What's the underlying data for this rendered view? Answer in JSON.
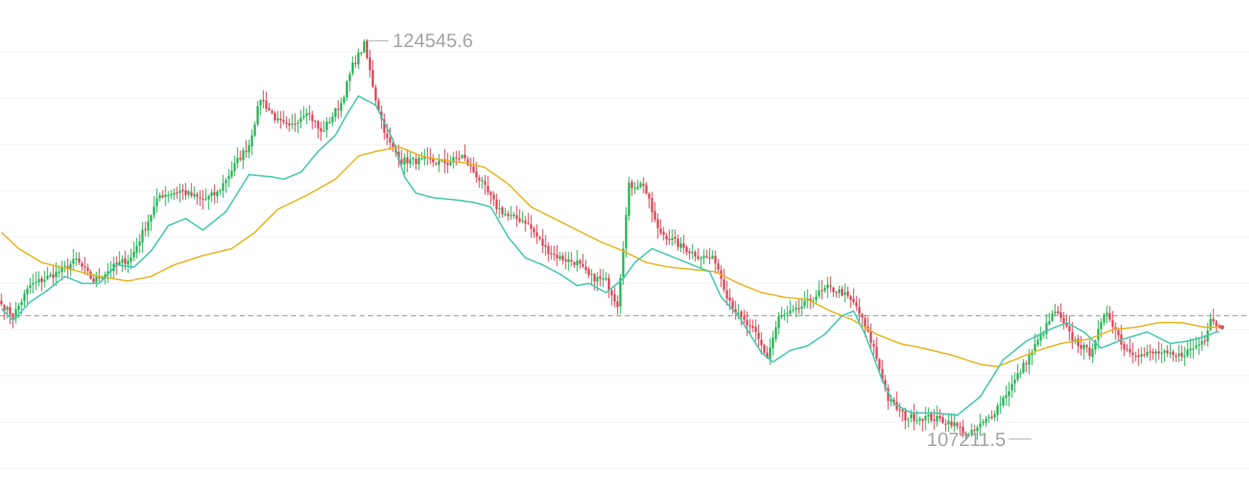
{
  "chart_data": {
    "type": "candlestick",
    "ylim": [
      105400,
      126000
    ],
    "grid": true,
    "colors": {
      "up": "#2eb85c",
      "down": "#dd4d5d",
      "ma_fast": "#3ec9ad",
      "ma_slow": "#e8b41c",
      "grid": "#eeeeee",
      "reference": "#9a9a9a",
      "label": "#a3a3a3"
    },
    "reference_price": 112600,
    "high_label": "124545.6",
    "low_label": "107211.5",
    "high_value": 124545.6,
    "low_value": 107211.5,
    "series": [
      {
        "name": "close",
        "anchors": [
          [
            0,
            113100
          ],
          [
            4,
            112600
          ],
          [
            10,
            113900
          ],
          [
            20,
            114500
          ],
          [
            26,
            115000
          ],
          [
            32,
            114100
          ],
          [
            40,
            114800
          ],
          [
            45,
            115100
          ],
          [
            55,
            117800
          ],
          [
            62,
            118000
          ],
          [
            70,
            117600
          ],
          [
            75,
            117900
          ],
          [
            82,
            119300
          ],
          [
            86,
            120000
          ],
          [
            90,
            122000
          ],
          [
            96,
            121000
          ],
          [
            100,
            120700
          ],
          [
            106,
            121500
          ],
          [
            111,
            120500
          ],
          [
            118,
            121800
          ],
          [
            122,
            123400
          ],
          [
            126,
            124300
          ],
          [
            130,
            122000
          ],
          [
            134,
            120200
          ],
          [
            139,
            119300
          ],
          [
            146,
            119300
          ],
          [
            155,
            119200
          ],
          [
            160,
            119500
          ],
          [
            166,
            118500
          ],
          [
            172,
            117300
          ],
          [
            176,
            116900
          ],
          [
            182,
            116700
          ],
          [
            189,
            115500
          ],
          [
            194,
            115100
          ],
          [
            200,
            114900
          ],
          [
            204,
            114300
          ],
          [
            210,
            114100
          ],
          [
            214,
            113100
          ],
          [
            218,
            118200
          ],
          [
            223,
            118300
          ],
          [
            228,
            116300
          ],
          [
            236,
            115600
          ],
          [
            242,
            115200
          ],
          [
            248,
            115000
          ],
          [
            252,
            113500
          ],
          [
            256,
            112600
          ],
          [
            262,
            111800
          ],
          [
            266,
            110800
          ],
          [
            270,
            112500
          ],
          [
            276,
            112800
          ],
          [
            282,
            113400
          ],
          [
            287,
            113800
          ],
          [
            292,
            113600
          ],
          [
            297,
            113000
          ],
          [
            303,
            111200
          ],
          [
            308,
            109000
          ],
          [
            314,
            108200
          ],
          [
            322,
            108200
          ],
          [
            330,
            108000
          ],
          [
            336,
            107400
          ],
          [
            344,
            108300
          ],
          [
            352,
            109800
          ],
          [
            360,
            111500
          ],
          [
            366,
            112800
          ],
          [
            372,
            111600
          ],
          [
            378,
            111000
          ],
          [
            384,
            112800
          ],
          [
            390,
            111200
          ],
          [
            396,
            110900
          ],
          [
            402,
            111000
          ],
          [
            408,
            110800
          ],
          [
            414,
            111200
          ],
          [
            418,
            111600
          ],
          [
            420,
            112600
          ],
          [
            422,
            112200
          ]
        ]
      },
      {
        "name": "ma_fast",
        "anchors": [
          [
            0,
            112900
          ],
          [
            4,
            112400
          ],
          [
            10,
            113200
          ],
          [
            16,
            113700
          ],
          [
            22,
            114300
          ],
          [
            28,
            114000
          ],
          [
            34,
            114000
          ],
          [
            40,
            114800
          ],
          [
            46,
            114700
          ],
          [
            52,
            115400
          ],
          [
            58,
            116500
          ],
          [
            64,
            116800
          ],
          [
            70,
            116300
          ],
          [
            78,
            117100
          ],
          [
            86,
            118700
          ],
          [
            94,
            118600
          ],
          [
            98,
            118500
          ],
          [
            104,
            118800
          ],
          [
            110,
            119700
          ],
          [
            116,
            120400
          ],
          [
            120,
            121300
          ],
          [
            124,
            122100
          ],
          [
            130,
            121700
          ],
          [
            136,
            120200
          ],
          [
            140,
            118600
          ],
          [
            144,
            117900
          ],
          [
            150,
            117700
          ],
          [
            158,
            117600
          ],
          [
            164,
            117500
          ],
          [
            170,
            117300
          ],
          [
            176,
            116000
          ],
          [
            182,
            115100
          ],
          [
            188,
            114800
          ],
          [
            194,
            114400
          ],
          [
            200,
            113900
          ],
          [
            204,
            114000
          ],
          [
            210,
            113600
          ],
          [
            216,
            114200
          ],
          [
            220,
            114900
          ],
          [
            226,
            115500
          ],
          [
            234,
            115100
          ],
          [
            240,
            114800
          ],
          [
            246,
            114500
          ],
          [
            250,
            113400
          ],
          [
            256,
            112600
          ],
          [
            260,
            111800
          ],
          [
            264,
            111000
          ],
          [
            268,
            110600
          ],
          [
            274,
            111100
          ],
          [
            280,
            111300
          ],
          [
            286,
            111800
          ],
          [
            292,
            112600
          ],
          [
            296,
            112800
          ],
          [
            300,
            111800
          ],
          [
            306,
            109800
          ],
          [
            310,
            108800
          ],
          [
            316,
            108400
          ],
          [
            324,
            108400
          ],
          [
            332,
            108300
          ],
          [
            340,
            109100
          ],
          [
            348,
            110700
          ],
          [
            356,
            111500
          ],
          [
            364,
            112000
          ],
          [
            370,
            112300
          ],
          [
            376,
            111900
          ],
          [
            382,
            111200
          ],
          [
            390,
            111600
          ],
          [
            398,
            111900
          ],
          [
            406,
            111400
          ],
          [
            412,
            111500
          ],
          [
            418,
            111700
          ],
          [
            422,
            111900
          ]
        ]
      },
      {
        "name": "ma_slow",
        "anchors": [
          [
            0,
            116200
          ],
          [
            6,
            115500
          ],
          [
            14,
            114900
          ],
          [
            24,
            114600
          ],
          [
            34,
            114300
          ],
          [
            44,
            114100
          ],
          [
            52,
            114300
          ],
          [
            60,
            114800
          ],
          [
            70,
            115200
          ],
          [
            80,
            115500
          ],
          [
            88,
            116200
          ],
          [
            96,
            117200
          ],
          [
            106,
            117800
          ],
          [
            116,
            118500
          ],
          [
            124,
            119500
          ],
          [
            130,
            119700
          ],
          [
            138,
            119900
          ],
          [
            146,
            119500
          ],
          [
            154,
            119300
          ],
          [
            162,
            119200
          ],
          [
            168,
            119000
          ],
          [
            176,
            118300
          ],
          [
            184,
            117300
          ],
          [
            192,
            116800
          ],
          [
            200,
            116300
          ],
          [
            208,
            115800
          ],
          [
            216,
            115400
          ],
          [
            224,
            114900
          ],
          [
            232,
            114700
          ],
          [
            240,
            114600
          ],
          [
            248,
            114500
          ],
          [
            256,
            114000
          ],
          [
            264,
            113600
          ],
          [
            272,
            113400
          ],
          [
            280,
            113300
          ],
          [
            288,
            112800
          ],
          [
            296,
            112400
          ],
          [
            304,
            111800
          ],
          [
            312,
            111400
          ],
          [
            320,
            111200
          ],
          [
            330,
            110900
          ],
          [
            340,
            110500
          ],
          [
            346,
            110400
          ],
          [
            352,
            110700
          ],
          [
            360,
            111100
          ],
          [
            368,
            111400
          ],
          [
            378,
            111600
          ],
          [
            386,
            112000
          ],
          [
            394,
            112100
          ],
          [
            402,
            112300
          ],
          [
            410,
            112300
          ],
          [
            418,
            112100
          ],
          [
            422,
            112100
          ]
        ]
      }
    ]
  }
}
